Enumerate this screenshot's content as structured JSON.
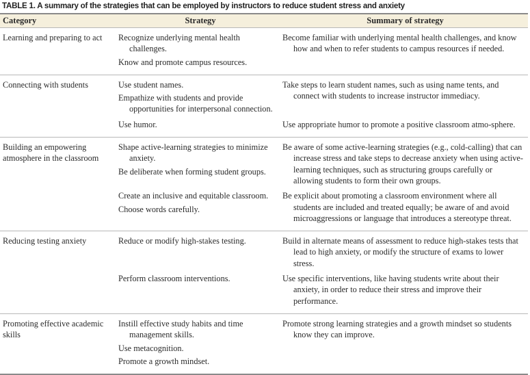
{
  "title": "TABLE 1.  A summary of the strategies that can be employed by instructors to reduce student stress and anxiety",
  "headers": {
    "category": "Category",
    "strategy": "Strategy",
    "summary": "Summary of strategy"
  },
  "rows": [
    {
      "category": "Learning and preparing to act",
      "subs": [
        {
          "strategies": [
            "Recognize underlying mental health challenges.",
            "Know and promote campus resources."
          ],
          "summaries": [
            "Become familiar with underlying mental health challenges, and know how and when to refer students to campus resources if needed."
          ]
        }
      ]
    },
    {
      "category": "Connecting with students",
      "subs": [
        {
          "strategies": [
            "Use student names.",
            "Empathize with students and provide opportunities for interpersonal connection."
          ],
          "summaries": [
            "Take steps to learn student names, such as using name tents, and connect with students to increase instructor immediacy."
          ]
        },
        {
          "strategies": [
            "Use humor."
          ],
          "summaries": [
            "Use appropriate humor to promote a positive classroom atmo-sphere."
          ]
        }
      ]
    },
    {
      "category": "Building an empowering atmosphere in the classroom",
      "subs": [
        {
          "strategies": [
            "Shape active-learning strategies to minimize anxiety.",
            "Be deliberate when forming student groups."
          ],
          "summaries": [
            "Be aware of some active-learning strategies (e.g., cold-calling) that can increase stress and take steps to decrease anxiety when using active-learning techniques, such as structuring groups carefully or allowing students to form their own groups."
          ]
        },
        {
          "strategies": [
            "Create an inclusive and equitable classroom.",
            "Choose words carefully."
          ],
          "summaries": [
            "Be explicit about promoting a classroom environment where all students are included and treated equally; be aware of and avoid microaggressions or language that introduces a stereotype threat."
          ]
        }
      ]
    },
    {
      "category": "Reducing testing anxiety",
      "subs": [
        {
          "strategies": [
            "Reduce or modify high-stakes testing."
          ],
          "summaries": [
            "Build in alternate means of assessment to reduce high-stakes tests that lead to high anxiety, or modify the structure of exams to lower stress."
          ]
        },
        {
          "strategies": [
            "Perform classroom interventions."
          ],
          "summaries": [
            "Use specific interventions, like having students write about their anxiety, in order to reduce their stress and improve their performance."
          ]
        }
      ]
    },
    {
      "category": "Promoting effective academic skills",
      "subs": [
        {
          "strategies": [
            "Instill effective study habits and time management skills.",
            "Use metacognition.",
            "Promote a growth mindset."
          ],
          "summaries": [
            "Promote strong learning strategies and a growth mindset so students know they can improve."
          ]
        }
      ]
    }
  ]
}
